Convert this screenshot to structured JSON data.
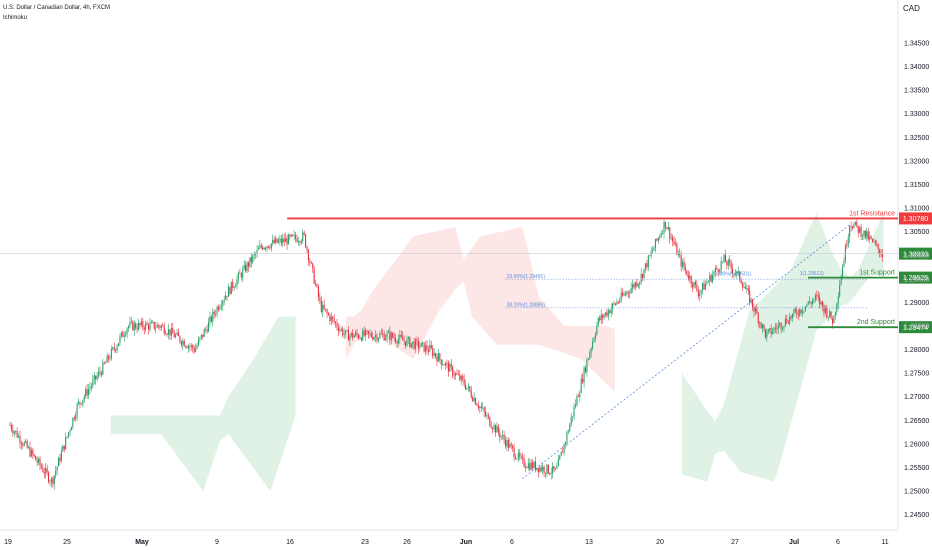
{
  "header": {
    "title": "U.S. Dollar / Canadian Dollar, 4h, FXCM",
    "indicator": "Ichimoku"
  },
  "colors": {
    "up": "#26a269",
    "down": "#e5303f",
    "resistance": "#ef3b3b",
    "support": "#2e8b3a",
    "fib": "#5b8dd6",
    "cloud_bull": "#d6eedc",
    "cloud_bear": "#fbdede",
    "last_price": "#2e8b3a"
  },
  "chart_data": {
    "type": "candlestick",
    "symbol": "USDCAD",
    "quote_currency_label": "CAD",
    "y_ticks": [
      "1.34500",
      "1.34000",
      "1.33500",
      "1.33000",
      "1.32500",
      "1.32000",
      "1.31500",
      "1.31000",
      "1.30500",
      "1.30000",
      "1.29500",
      "1.29000",
      "1.28500",
      "1.28000",
      "1.27500",
      "1.27000",
      "1.26500",
      "1.26000",
      "1.25500",
      "1.25000",
      "1.24500"
    ],
    "x_ticks": [
      "19",
      "25",
      "May",
      "9",
      "16",
      "23",
      "26",
      "Jun",
      "6",
      "13",
      "20",
      "27",
      "Jul",
      "6",
      "11"
    ],
    "levels": [
      {
        "name": "1st Resistance",
        "value": 1.3078,
        "label": "1.30780"
      },
      {
        "name": "1st Support",
        "value": 1.29525,
        "label": "1.29525"
      },
      {
        "name": "2nd Support",
        "value": 1.28474,
        "label": "1.28474"
      }
    ],
    "last_price": {
      "value": 1.30033,
      "label": "1.30033"
    },
    "fib_levels": [
      {
        "label": "23.60%(1.29491)",
        "value": 1.29491
      },
      {
        "label": "38.20%(1.28886)",
        "value": 1.28886
      },
      {
        "label": "0.00%(1.29501)",
        "value": 1.29501
      },
      {
        "label": "1(1.29513)",
        "value": 1.29513
      }
    ],
    "price_path": [
      {
        "d": 0,
        "p": 1.264
      },
      {
        "d": 5,
        "p": 1.252
      },
      {
        "d": 8,
        "p": 1.268
      },
      {
        "d": 11,
        "p": 1.276
      },
      {
        "d": 14,
        "p": 1.285
      },
      {
        "d": 18,
        "p": 1.285
      },
      {
        "d": 22,
        "p": 1.28
      },
      {
        "d": 25,
        "p": 1.29
      },
      {
        "d": 30,
        "p": 1.302
      },
      {
        "d": 35,
        "p": 1.304
      },
      {
        "d": 37,
        "p": 1.289
      },
      {
        "d": 40,
        "p": 1.283
      },
      {
        "d": 45,
        "p": 1.283
      },
      {
        "d": 50,
        "p": 1.28
      },
      {
        "d": 54,
        "p": 1.273
      },
      {
        "d": 57,
        "p": 1.265
      },
      {
        "d": 61,
        "p": 1.256
      },
      {
        "d": 65,
        "p": 1.254
      },
      {
        "d": 66,
        "p": 1.26
      },
      {
        "d": 70,
        "p": 1.286
      },
      {
        "d": 75,
        "p": 1.295
      },
      {
        "d": 78,
        "p": 1.307
      },
      {
        "d": 80,
        "p": 1.298
      },
      {
        "d": 82,
        "p": 1.292
      },
      {
        "d": 85,
        "p": 1.299
      },
      {
        "d": 87,
        "p": 1.295
      },
      {
        "d": 90,
        "p": 1.283
      },
      {
        "d": 93,
        "p": 1.287
      },
      {
        "d": 96,
        "p": 1.291
      },
      {
        "d": 98,
        "p": 1.286
      },
      {
        "d": 100,
        "p": 1.307
      },
      {
        "d": 102,
        "p": 1.304
      },
      {
        "d": 104,
        "p": 1.3
      }
    ]
  }
}
